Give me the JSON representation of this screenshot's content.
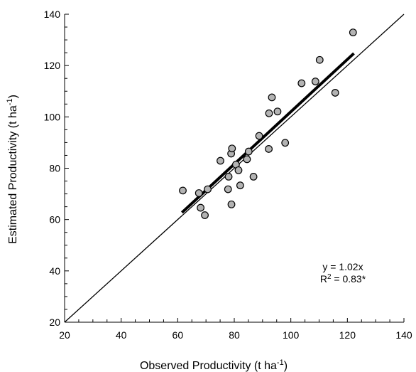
{
  "chart_data": {
    "type": "scatter",
    "title": "",
    "xlabel_main": "Observed Productivity (t ha",
    "xlabel_sup": "-1",
    "xlabel_end": ")",
    "ylabel_main": "Estimated Productivity (t ha",
    "ylabel_sup": "-1",
    "ylabel_end": ")",
    "xlim": [
      20,
      140
    ],
    "ylim": [
      20,
      140
    ],
    "xticks": [
      20,
      40,
      60,
      80,
      100,
      120,
      140
    ],
    "yticks": [
      20,
      40,
      60,
      80,
      100,
      120,
      140
    ],
    "grid": false,
    "points": [
      {
        "x": 61.8,
        "y": 71.3
      },
      {
        "x": 67.5,
        "y": 70.3
      },
      {
        "x": 68.1,
        "y": 64.6
      },
      {
        "x": 69.6,
        "y": 61.7
      },
      {
        "x": 70.6,
        "y": 71.8
      },
      {
        "x": 75.1,
        "y": 82.9
      },
      {
        "x": 77.8,
        "y": 71.8
      },
      {
        "x": 78.0,
        "y": 76.7
      },
      {
        "x": 78.9,
        "y": 85.7
      },
      {
        "x": 79.2,
        "y": 87.7
      },
      {
        "x": 79.0,
        "y": 65.9
      },
      {
        "x": 80.6,
        "y": 81.4
      },
      {
        "x": 81.5,
        "y": 79.2
      },
      {
        "x": 82.1,
        "y": 73.3
      },
      {
        "x": 84.5,
        "y": 83.5
      },
      {
        "x": 85.1,
        "y": 86.5
      },
      {
        "x": 86.8,
        "y": 76.7
      },
      {
        "x": 88.8,
        "y": 92.6
      },
      {
        "x": 92.3,
        "y": 101.4
      },
      {
        "x": 92.2,
        "y": 87.5
      },
      {
        "x": 93.3,
        "y": 107.6
      },
      {
        "x": 95.3,
        "y": 102.1
      },
      {
        "x": 98.0,
        "y": 89.9
      },
      {
        "x": 103.8,
        "y": 113.1
      },
      {
        "x": 108.7,
        "y": 113.8
      },
      {
        "x": 110.2,
        "y": 122.2
      },
      {
        "x": 115.7,
        "y": 109.4
      },
      {
        "x": 122.0,
        "y": 132.9
      }
    ],
    "fit_line": {
      "slope": 1.02,
      "x_range": [
        61.5,
        122.3
      ]
    },
    "identity_line": {
      "x_range": [
        20,
        140
      ]
    },
    "annotations": {
      "equation": "y = 1.02x",
      "r2_prefix": "R",
      "r2_sup": "2",
      "r2_suffix": " = 0.83*"
    },
    "colors": {
      "marker_fill": "#b3b3b3",
      "marker_stroke": "#000000",
      "line": "#000000"
    }
  }
}
